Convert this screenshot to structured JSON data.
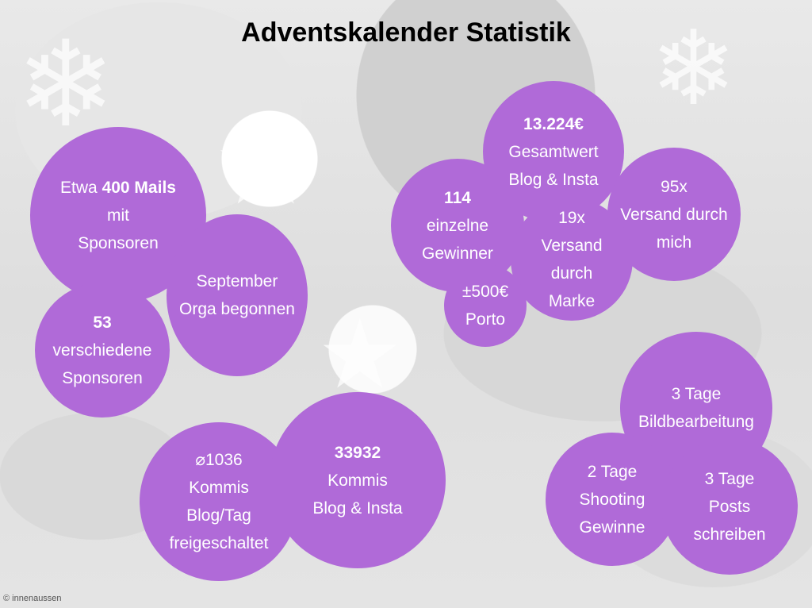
{
  "title": "Adventskalender Statistik",
  "credit": "© innenaussen",
  "colors": {
    "bubble": "#b06ad8",
    "text": "#ffffff",
    "title": "#000000"
  },
  "background_decor": [
    "snowflake-icon",
    "star-icon",
    "snowflake-icon",
    "star-icon"
  ],
  "bubbles": {
    "mails": {
      "prefix": "Etwa ",
      "bold": "400 Mails",
      "line2": "mit",
      "line3": "Sponsoren"
    },
    "september": {
      "line1": "September",
      "line2": "Orga begonnen"
    },
    "sponsors": {
      "bold": "53",
      "line2": "verschiedene",
      "line3": "Sponsoren"
    },
    "gesamtwert": {
      "bold": "13.224€",
      "line2": "Gesamtwert",
      "line3": "Blog & Insta"
    },
    "gewinner": {
      "bold": "114",
      "line2": "einzelne",
      "line3": "Gewinner"
    },
    "versand_marke": {
      "line1": "19x",
      "line2": "Versand",
      "line3": "durch",
      "line4": "Marke"
    },
    "versand_mich": {
      "line1": "95x",
      "line2": "Versand durch",
      "line3": "mich"
    },
    "porto": {
      "line1": "±500€",
      "line2": "Porto"
    },
    "kommis_tag": {
      "line1": "⌀1036",
      "line2": "Kommis",
      "line3": "Blog/Tag",
      "line4": "freigeschaltet"
    },
    "kommis_total": {
      "bold": "33932",
      "line2": "Kommis",
      "line3": "Blog & Insta"
    },
    "bildbearbeitung": {
      "line1": "3 Tage",
      "line2": "Bildbearbeitung"
    },
    "shooting": {
      "line1": "2 Tage",
      "line2": "Shooting",
      "line3": "Gewinne"
    },
    "posts": {
      "line1": "3 Tage",
      "line2": "Posts",
      "line3": "schreiben"
    }
  }
}
